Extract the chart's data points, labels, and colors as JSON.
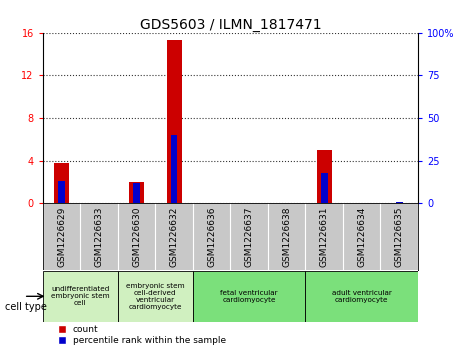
{
  "title": "GDS5603 / ILMN_1817471",
  "samples": [
    "GSM1226629",
    "GSM1226633",
    "GSM1226630",
    "GSM1226632",
    "GSM1226636",
    "GSM1226637",
    "GSM1226638",
    "GSM1226631",
    "GSM1226634",
    "GSM1226635"
  ],
  "counts": [
    3.8,
    0,
    2.0,
    15.3,
    0,
    0,
    0,
    5.0,
    0,
    0
  ],
  "percentiles": [
    13,
    0,
    12,
    40,
    0,
    0,
    0,
    18,
    0,
    1
  ],
  "ylim_left": [
    0,
    16
  ],
  "ylim_right": [
    0,
    100
  ],
  "yticks_left": [
    0,
    4,
    8,
    12,
    16
  ],
  "yticks_right": [
    0,
    25,
    50,
    75,
    100
  ],
  "cell_types": [
    {
      "label": "undifferentiated\nembryonic stem\ncell",
      "start": 0,
      "end": 1,
      "color": "#d0f0c0"
    },
    {
      "label": "embryonic stem\ncell-derived\nventricular\ncardiomyocyte",
      "start": 2,
      "end": 3,
      "color": "#d0f0c0"
    },
    {
      "label": "fetal ventricular\ncardiomyocyte",
      "start": 4,
      "end": 6,
      "color": "#7be07b"
    },
    {
      "label": "adult ventricular\ncardiomyocyte",
      "start": 7,
      "end": 9,
      "color": "#7be07b"
    }
  ],
  "bar_color_count": "#cc0000",
  "bar_color_percentile": "#0000cc",
  "bar_width": 0.4,
  "background_plot": "#ffffff",
  "background_samples": "#c8c8c8",
  "title_fontsize": 10,
  "tick_fontsize": 7,
  "sample_fontsize": 6.5
}
